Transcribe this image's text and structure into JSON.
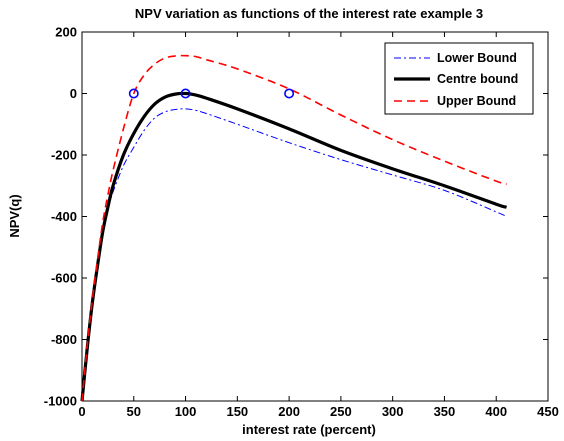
{
  "chart_data": {
    "type": "line",
    "title": "NPV variation as functions of the interest rate example 3",
    "xlabel": "interest rate (percent)",
    "ylabel": "NPV(q)",
    "xlim": [
      0,
      450
    ],
    "ylim": [
      -1000,
      200
    ],
    "xticks": [
      "0",
      "50",
      "100",
      "150",
      "200",
      "250",
      "300",
      "350",
      "400",
      "450"
    ],
    "yticks": [
      "-1000",
      "-800",
      "-600",
      "-400",
      "-200",
      "0",
      "200"
    ],
    "grid": false,
    "legend_position": "top-right",
    "series": [
      {
        "name": "Lower Bound",
        "color": "#0000ff",
        "style": "dash-dot",
        "x": [
          0,
          5,
          10,
          15,
          20,
          25,
          30,
          40,
          50,
          60,
          70,
          80,
          90,
          100,
          110,
          120,
          150,
          200,
          250,
          300,
          350,
          400,
          410
        ],
        "y": [
          -1000,
          -830,
          -680,
          -560,
          -460,
          -380,
          -320,
          -235,
          -175,
          -120,
          -80,
          -60,
          -52,
          -50,
          -55,
          -65,
          -100,
          -160,
          -215,
          -265,
          -315,
          -385,
          -400
        ]
      },
      {
        "name": "Centre bound",
        "color": "#000000",
        "style": "solid",
        "x": [
          0,
          5,
          10,
          15,
          20,
          25,
          30,
          40,
          50,
          60,
          70,
          80,
          90,
          100,
          110,
          120,
          150,
          200,
          250,
          300,
          350,
          400,
          410
        ],
        "y": [
          -1000,
          -830,
          -680,
          -560,
          -450,
          -370,
          -300,
          -200,
          -130,
          -75,
          -35,
          -12,
          -2,
          0,
          -5,
          -15,
          -50,
          -115,
          -185,
          -245,
          -300,
          -360,
          -370
        ]
      },
      {
        "name": "Upper Bound",
        "color": "#ff0000",
        "style": "dashed",
        "x": [
          0,
          5,
          10,
          15,
          20,
          25,
          30,
          40,
          50,
          60,
          70,
          80,
          90,
          100,
          110,
          120,
          150,
          200,
          250,
          300,
          350,
          400,
          410
        ],
        "y": [
          -1000,
          -820,
          -670,
          -540,
          -420,
          -330,
          -250,
          -115,
          0,
          60,
          95,
          115,
          122,
          123,
          120,
          110,
          80,
          15,
          -70,
          -150,
          -220,
          -285,
          -295
        ]
      }
    ],
    "markers": {
      "color": "#0000ff",
      "shape": "circle",
      "points": [
        {
          "x": 50,
          "y": 0
        },
        {
          "x": 100,
          "y": 0
        },
        {
          "x": 200,
          "y": 0
        }
      ]
    }
  }
}
